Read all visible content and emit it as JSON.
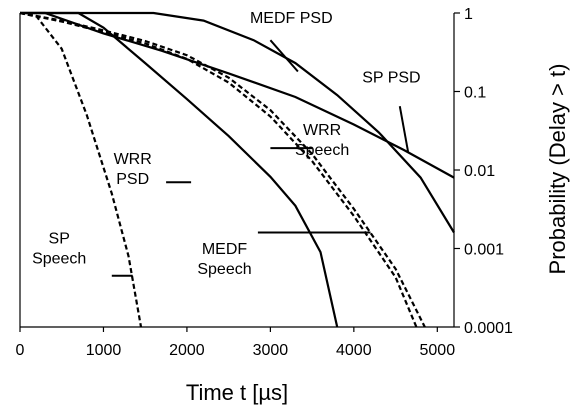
{
  "chart_data": {
    "type": "line",
    "xlabel": "Time t [µs]",
    "ylabel": "Probability (Delay > t)",
    "xlim": [
      0,
      5200
    ],
    "ylim": [
      0.0001,
      1
    ],
    "yscale": "log",
    "grid": false,
    "legend": "none",
    "x_ticks": [
      "0",
      "1000",
      "2000",
      "3000",
      "4000",
      "5000"
    ],
    "y_ticks": [
      "1",
      "0.1",
      "0.01",
      "0.001",
      "0.0001"
    ],
    "series": [
      {
        "label": "MEDF PSD",
        "dash": "solid",
        "points": [
          [
            0,
            1
          ],
          [
            1000,
            1
          ],
          [
            1600,
            1
          ],
          [
            2200,
            0.8
          ],
          [
            2800,
            0.45
          ],
          [
            3300,
            0.23
          ],
          [
            3800,
            0.09
          ],
          [
            4300,
            0.03
          ],
          [
            4800,
            0.008
          ],
          [
            5200,
            0.0016
          ]
        ]
      },
      {
        "label": "SP PSD",
        "dash": "solid",
        "points": [
          [
            0,
            1
          ],
          [
            300,
            1
          ],
          [
            1000,
            0.55
          ],
          [
            1700,
            0.33
          ],
          [
            2500,
            0.17
          ],
          [
            3300,
            0.085
          ],
          [
            4000,
            0.038
          ],
          [
            4600,
            0.018
          ],
          [
            5200,
            0.008
          ]
        ]
      },
      {
        "label": "WRR Speech",
        "dash": "dashed",
        "points": [
          [
            0,
            1
          ],
          [
            500,
            0.8
          ],
          [
            1000,
            0.6
          ],
          [
            1500,
            0.44
          ],
          [
            2000,
            0.29
          ],
          [
            2500,
            0.15
          ],
          [
            3000,
            0.058
          ],
          [
            3500,
            0.016
          ],
          [
            4000,
            0.0032
          ],
          [
            4500,
            0.00055
          ],
          [
            4850,
            0.0001
          ]
        ]
      },
      {
        "label": "MEDF Speech",
        "dash": "dashed",
        "points": [
          [
            0,
            1
          ],
          [
            500,
            0.78
          ],
          [
            1000,
            0.57
          ],
          [
            1500,
            0.41
          ],
          [
            2000,
            0.26
          ],
          [
            2500,
            0.13
          ],
          [
            3000,
            0.048
          ],
          [
            3500,
            0.013
          ],
          [
            4000,
            0.0026
          ],
          [
            4500,
            0.00043
          ],
          [
            4750,
            0.0001
          ]
        ]
      },
      {
        "label": "WRR PSD",
        "dash": "solid",
        "points": [
          [
            0,
            1
          ],
          [
            700,
            1
          ],
          [
            1000,
            0.65
          ],
          [
            1500,
            0.23
          ],
          [
            2000,
            0.08
          ],
          [
            2500,
            0.027
          ],
          [
            3000,
            0.0082
          ],
          [
            3300,
            0.0035
          ],
          [
            3600,
            0.0009
          ],
          [
            3800,
            0.0001
          ]
        ]
      },
      {
        "label": "SP Speech",
        "dash": "dashed",
        "points": [
          [
            0,
            1
          ],
          [
            200,
            0.9
          ],
          [
            500,
            0.35
          ],
          [
            800,
            0.05
          ],
          [
            1100,
            0.005
          ],
          [
            1300,
            0.0008
          ],
          [
            1450,
            0.0001
          ]
        ]
      }
    ],
    "annotations": [
      {
        "lines": [
          "MEDF PSD"
        ],
        "x": 3250,
        "y": 0.75,
        "align": "middle",
        "leader": [
          [
            3000,
            0.45
          ],
          [
            3330,
            0.18
          ]
        ]
      },
      {
        "lines": [
          "SP PSD"
        ],
        "x": 4100,
        "y": 0.13,
        "align": "start",
        "leader": [
          [
            4550,
            0.065
          ],
          [
            4650,
            0.017
          ]
        ]
      },
      {
        "lines": [
          "WRR",
          "Speech"
        ],
        "x": 3620,
        "y": 0.028,
        "align": "middle",
        "leader": [
          [
            3000,
            0.019
          ],
          [
            3500,
            0.019
          ]
        ]
      },
      {
        "lines": [
          "WRR",
          "PSD"
        ],
        "x": 1350,
        "y": 0.012,
        "align": "middle",
        "leader": [
          [
            1750,
            0.007
          ],
          [
            2050,
            0.007
          ]
        ]
      },
      {
        "lines": [
          "MEDF",
          "Speech"
        ],
        "x": 2450,
        "y": 0.00085,
        "align": "middle",
        "leader": [
          [
            2850,
            0.0016
          ],
          [
            4200,
            0.0016
          ]
        ]
      },
      {
        "lines": [
          "SP",
          "Speech"
        ],
        "x": 470,
        "y": 0.00115,
        "align": "middle",
        "leader": [
          [
            1100,
            0.00045
          ],
          [
            1350,
            0.00045
          ]
        ]
      }
    ]
  }
}
